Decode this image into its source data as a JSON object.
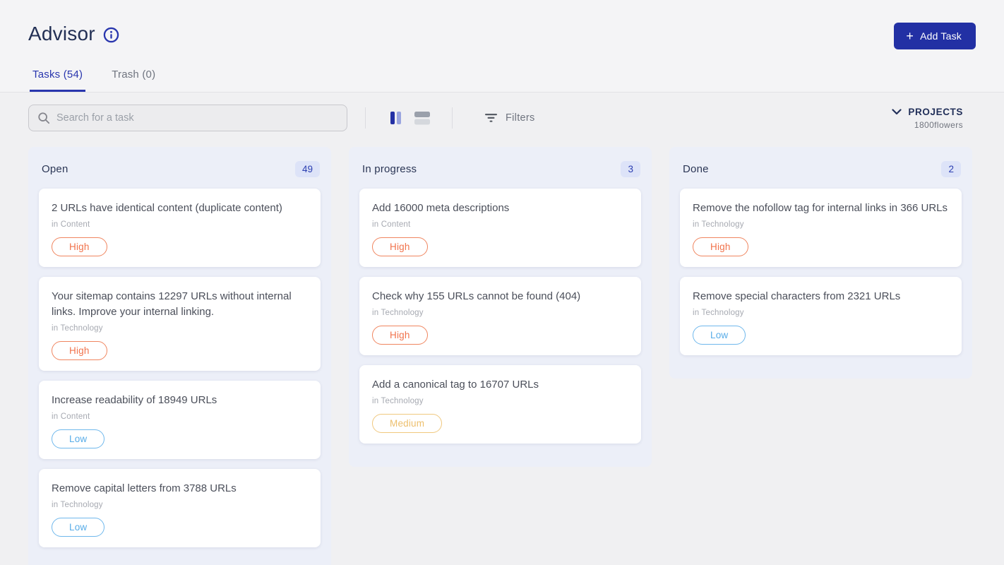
{
  "header": {
    "title": "Advisor",
    "add_task_label": "Add Task"
  },
  "tabs": [
    {
      "label": "Tasks (54)",
      "active": true
    },
    {
      "label": "Trash (0)",
      "active": false
    }
  ],
  "toolbar": {
    "search_placeholder": "Search for a task",
    "filters_label": "Filters",
    "projects_label": "PROJECTS",
    "project_name": "1800flowers"
  },
  "colors": {
    "accent_blue": "#2936ae",
    "button_blue": "#2230a4",
    "navy_text": "#233055",
    "column_bg": "#eceff8",
    "count_badge_bg": "#dde3f8",
    "count_badge_text": "#2b3eb1",
    "priority_high": "#f1734c",
    "priority_low": "#57ace8",
    "priority_medium": "#edbf6d"
  },
  "board": {
    "columns": [
      {
        "title": "Open",
        "count": "49",
        "cards": [
          {
            "title": "2 URLs have identical content (duplicate content)",
            "category": "in Content",
            "priority": "High"
          },
          {
            "title": "Your sitemap contains 12297 URLs without internal links. Improve your internal linking.",
            "category": "in Technology",
            "priority": "High"
          },
          {
            "title": "Increase readability of 18949 URLs",
            "category": "in Content",
            "priority": "Low"
          },
          {
            "title": "Remove capital letters from 3788 URLs",
            "category": "in Technology",
            "priority": "Low"
          }
        ]
      },
      {
        "title": "In progress",
        "count": "3",
        "cards": [
          {
            "title": "Add 16000 meta descriptions",
            "category": "in Content",
            "priority": "High"
          },
          {
            "title": "Check why 155 URLs cannot be found (404)",
            "category": "in Technology",
            "priority": "High"
          },
          {
            "title": "Add a canonical tag to 16707 URLs",
            "category": "in Technology",
            "priority": "Medium"
          }
        ]
      },
      {
        "title": "Done",
        "count": "2",
        "cards": [
          {
            "title": "Remove the nofollow tag for internal links in 366 URLs",
            "category": "in Technology",
            "priority": "High"
          },
          {
            "title": "Remove special characters from 2321 URLs",
            "category": "in Technology",
            "priority": "Low"
          }
        ]
      }
    ]
  }
}
